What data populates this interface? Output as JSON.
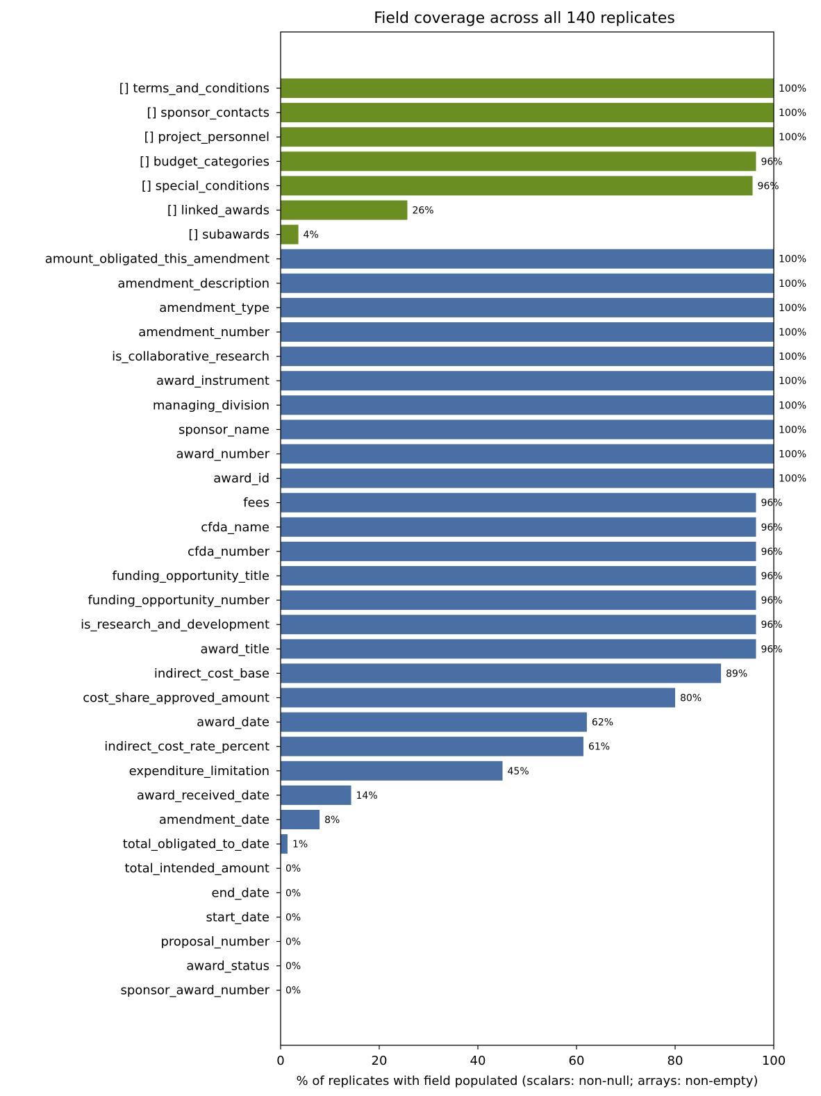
{
  "chart_data": {
    "type": "bar",
    "orientation": "horizontal",
    "title": "Field coverage across all 140 replicates",
    "xlabel": "% of replicates with field populated (scalars: non-null;  arrays: non-empty)",
    "ylabel": "",
    "xlim": [
      0,
      100
    ],
    "xticks": [
      0,
      20,
      40,
      60,
      80,
      100
    ],
    "grid": false,
    "colors": {
      "array": "#6b8e23",
      "scalar": "#4a6fa5"
    },
    "bars": [
      {
        "label": "[] terms_and_conditions",
        "value": 100,
        "display": "100%",
        "group": "array"
      },
      {
        "label": "[] sponsor_contacts",
        "value": 100,
        "display": "100%",
        "group": "array"
      },
      {
        "label": "[] project_personnel",
        "value": 100,
        "display": "100%",
        "group": "array"
      },
      {
        "label": "[] budget_categories",
        "value": 96.4,
        "display": "96%",
        "group": "array"
      },
      {
        "label": "[] special_conditions",
        "value": 95.7,
        "display": "96%",
        "group": "array"
      },
      {
        "label": "[] linked_awards",
        "value": 25.7,
        "display": "26%",
        "group": "array"
      },
      {
        "label": "[] subawards",
        "value": 3.6,
        "display": "4%",
        "group": "array"
      },
      {
        "label": "amount_obligated_this_amendment",
        "value": 100,
        "display": "100%",
        "group": "scalar"
      },
      {
        "label": "amendment_description",
        "value": 100,
        "display": "100%",
        "group": "scalar"
      },
      {
        "label": "amendment_type",
        "value": 100,
        "display": "100%",
        "group": "scalar"
      },
      {
        "label": "amendment_number",
        "value": 100,
        "display": "100%",
        "group": "scalar"
      },
      {
        "label": "is_collaborative_research",
        "value": 100,
        "display": "100%",
        "group": "scalar"
      },
      {
        "label": "award_instrument",
        "value": 100,
        "display": "100%",
        "group": "scalar"
      },
      {
        "label": "managing_division",
        "value": 100,
        "display": "100%",
        "group": "scalar"
      },
      {
        "label": "sponsor_name",
        "value": 100,
        "display": "100%",
        "group": "scalar"
      },
      {
        "label": "award_number",
        "value": 100,
        "display": "100%",
        "group": "scalar"
      },
      {
        "label": "award_id",
        "value": 100,
        "display": "100%",
        "group": "scalar"
      },
      {
        "label": "fees",
        "value": 96.4,
        "display": "96%",
        "group": "scalar"
      },
      {
        "label": "cfda_name",
        "value": 96.4,
        "display": "96%",
        "group": "scalar"
      },
      {
        "label": "cfda_number",
        "value": 96.4,
        "display": "96%",
        "group": "scalar"
      },
      {
        "label": "funding_opportunity_title",
        "value": 96.4,
        "display": "96%",
        "group": "scalar"
      },
      {
        "label": "funding_opportunity_number",
        "value": 96.4,
        "display": "96%",
        "group": "scalar"
      },
      {
        "label": "is_research_and_development",
        "value": 96.4,
        "display": "96%",
        "group": "scalar"
      },
      {
        "label": "award_title",
        "value": 96.4,
        "display": "96%",
        "group": "scalar"
      },
      {
        "label": "indirect_cost_base",
        "value": 89.3,
        "display": "89%",
        "group": "scalar"
      },
      {
        "label": "cost_share_approved_amount",
        "value": 80.0,
        "display": "80%",
        "group": "scalar"
      },
      {
        "label": "award_date",
        "value": 62.1,
        "display": "62%",
        "group": "scalar"
      },
      {
        "label": "indirect_cost_rate_percent",
        "value": 61.4,
        "display": "61%",
        "group": "scalar"
      },
      {
        "label": "expenditure_limitation",
        "value": 45.0,
        "display": "45%",
        "group": "scalar"
      },
      {
        "label": "award_received_date",
        "value": 14.3,
        "display": "14%",
        "group": "scalar"
      },
      {
        "label": "amendment_date",
        "value": 7.9,
        "display": "8%",
        "group": "scalar"
      },
      {
        "label": "total_obligated_to_date",
        "value": 1.4,
        "display": "1%",
        "group": "scalar"
      },
      {
        "label": "total_intended_amount",
        "value": 0,
        "display": "0%",
        "group": "scalar"
      },
      {
        "label": "end_date",
        "value": 0,
        "display": "0%",
        "group": "scalar"
      },
      {
        "label": "start_date",
        "value": 0,
        "display": "0%",
        "group": "scalar"
      },
      {
        "label": "proposal_number",
        "value": 0,
        "display": "0%",
        "group": "scalar"
      },
      {
        "label": "award_status",
        "value": 0,
        "display": "0%",
        "group": "scalar"
      },
      {
        "label": "sponsor_award_number",
        "value": 0,
        "display": "0%",
        "group": "scalar"
      }
    ]
  }
}
